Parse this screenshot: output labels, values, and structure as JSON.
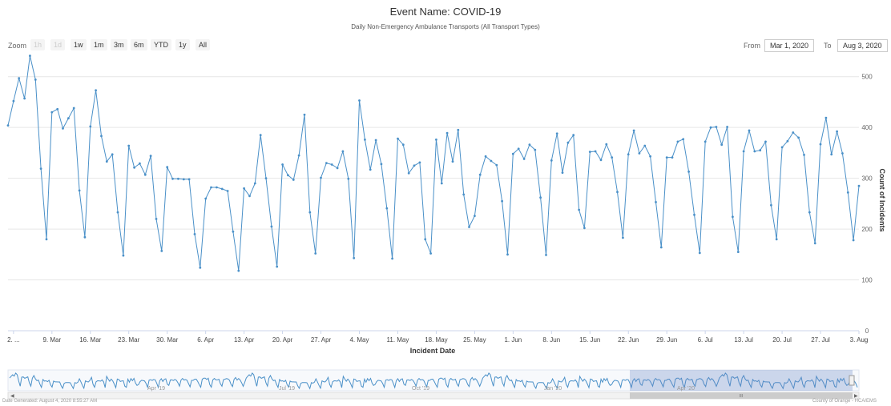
{
  "title": "Event Name: COVID-19",
  "subtitle": "Daily Non-Emergency Ambulance Transports (All Transport Types)",
  "zoom": {
    "label": "Zoom",
    "buttons": [
      {
        "label": "1h",
        "enabled": false
      },
      {
        "label": "1d",
        "enabled": false
      },
      {
        "label": "1w",
        "enabled": true
      },
      {
        "label": "1m",
        "enabled": true
      },
      {
        "label": "3m",
        "enabled": true
      },
      {
        "label": "6m",
        "enabled": true
      },
      {
        "label": "YTD",
        "enabled": true
      },
      {
        "label": "1y",
        "enabled": true
      },
      {
        "label": "All",
        "enabled": true
      }
    ]
  },
  "range": {
    "from_label": "From",
    "from_value": "Mar 1, 2020",
    "to_label": "To",
    "to_value": "Aug 3, 2020"
  },
  "navigator": {
    "labels": [
      "Apr '19",
      "Jul '19",
      "Oct '19",
      "Jan '20",
      "Apr '20"
    ],
    "handle_glyph": "III"
  },
  "footer": {
    "left": "Date Generated: August 4, 2020 8:55:27 AM",
    "right": "County of Orange - HCA/EMS"
  },
  "colors": {
    "line": "#4a90c8",
    "grid": "#e6e6e6",
    "axis": "#ccd6eb",
    "navigator_mask": "rgba(102,133,194,0.3)"
  },
  "chart_data": {
    "type": "line",
    "title": "Event Name: COVID-19",
    "subtitle": "Daily Non-Emergency Ambulance Transports (All Transport Types)",
    "xlabel": "Incident Date",
    "ylabel": "Count of Incidents",
    "ylim": [
      0,
      500
    ],
    "yticks": [
      0,
      100,
      200,
      300,
      400,
      500
    ],
    "xlim": [
      "2020-03-01",
      "2020-08-03"
    ],
    "xtick_labels": [
      {
        "date": "2020-03-02",
        "label": "2. ..."
      },
      {
        "date": "2020-03-09",
        "label": "9. Mar"
      },
      {
        "date": "2020-03-16",
        "label": "16. Mar"
      },
      {
        "date": "2020-03-23",
        "label": "23. Mar"
      },
      {
        "date": "2020-03-30",
        "label": "30. Mar"
      },
      {
        "date": "2020-04-06",
        "label": "6. Apr"
      },
      {
        "date": "2020-04-13",
        "label": "13. Apr"
      },
      {
        "date": "2020-04-20",
        "label": "20. Apr"
      },
      {
        "date": "2020-04-27",
        "label": "27. Apr"
      },
      {
        "date": "2020-05-04",
        "label": "4. May"
      },
      {
        "date": "2020-05-11",
        "label": "11. May"
      },
      {
        "date": "2020-05-18",
        "label": "18. May"
      },
      {
        "date": "2020-05-25",
        "label": "25. May"
      },
      {
        "date": "2020-06-01",
        "label": "1. Jun"
      },
      {
        "date": "2020-06-08",
        "label": "8. Jun"
      },
      {
        "date": "2020-06-15",
        "label": "15. Jun"
      },
      {
        "date": "2020-06-22",
        "label": "22. Jun"
      },
      {
        "date": "2020-06-29",
        "label": "29. Jun"
      },
      {
        "date": "2020-07-06",
        "label": "6. Jul"
      },
      {
        "date": "2020-07-13",
        "label": "13. Jul"
      },
      {
        "date": "2020-07-20",
        "label": "20. Jul"
      },
      {
        "date": "2020-07-27",
        "label": "27. Jul"
      },
      {
        "date": "2020-08-03",
        "label": "3. Aug"
      }
    ],
    "series": [
      {
        "start_date": "2020-03-01",
        "values": [
          404,
          452,
          497,
          457,
          541,
          494,
          319,
          180,
          430,
          436,
          398,
          418,
          438,
          276,
          184,
          402,
          473,
          383,
          333,
          347,
          233,
          148,
          364,
          321,
          329,
          307,
          344,
          220,
          157,
          322,
          299,
          299,
          298,
          298,
          190,
          124,
          260,
          282,
          282,
          279,
          275,
          195,
          118,
          280,
          265,
          290,
          385,
          300,
          205,
          126,
          327,
          306,
          297,
          345,
          425,
          233,
          152,
          301,
          330,
          327,
          320,
          353,
          299,
          143,
          453,
          376,
          317,
          375,
          328,
          241,
          142,
          378,
          366,
          310,
          325,
          331,
          180,
          152,
          376,
          290,
          389,
          333,
          395,
          268,
          204,
          226,
          307,
          343,
          334,
          326,
          255,
          150,
          348,
          358,
          338,
          366,
          356,
          262,
          149,
          335,
          388,
          311,
          370,
          385,
          238,
          202,
          352,
          353,
          336,
          367,
          341,
          273,
          183,
          347,
          394,
          349,
          364,
          343,
          253,
          164,
          341,
          341,
          372,
          377,
          313,
          228,
          153,
          372,
          400,
          401,
          366,
          401,
          224,
          155,
          353,
          394,
          353,
          355,
          372,
          247,
          180,
          361,
          373,
          390,
          380,
          346,
          233,
          172,
          367,
          419,
          347,
          392,
          349,
          272,
          178,
          285
        ]
      }
    ]
  }
}
